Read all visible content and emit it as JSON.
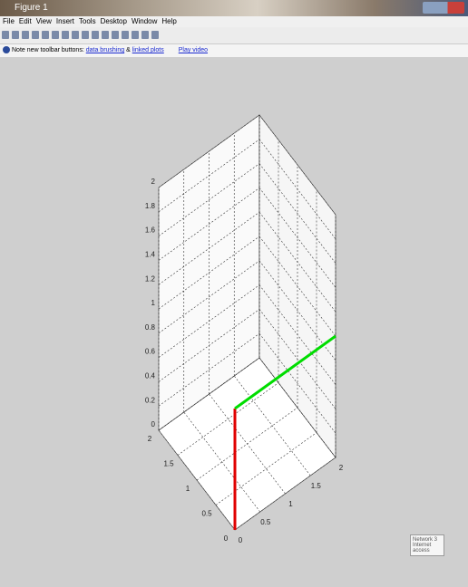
{
  "window": {
    "title": "Figure 1"
  },
  "menu": [
    "File",
    "Edit",
    "View",
    "Insert",
    "Tools",
    "Desktop",
    "Window",
    "Help"
  ],
  "infobar": {
    "note": "Note new toolbar buttons:",
    "link1": "data brushing",
    "amp": "&",
    "link2": "linked plots",
    "link3": "Play video"
  },
  "tooltip": {
    "title": "Network 3",
    "text": "Internet access"
  },
  "chart_data": {
    "type": "line3d",
    "grid": true,
    "xlim": [
      0,
      2
    ],
    "ylim": [
      0,
      2
    ],
    "zlim": [
      0,
      2
    ],
    "xticks": [
      0,
      0.5,
      1,
      1.5,
      2
    ],
    "yticks": [
      0,
      0.5,
      1,
      1.5,
      2
    ],
    "zticks": [
      0,
      0.2,
      0.4,
      0.6,
      0.8,
      1,
      1.2,
      1.4,
      1.6,
      1.8,
      2
    ],
    "series": [
      {
        "color": "#e00000",
        "x": [
          0,
          0
        ],
        "y": [
          0,
          0
        ],
        "z": [
          0,
          1
        ]
      },
      {
        "color": "#00dd00",
        "x": [
          0,
          2
        ],
        "y": [
          0,
          0
        ],
        "z": [
          1,
          1
        ]
      }
    ]
  }
}
